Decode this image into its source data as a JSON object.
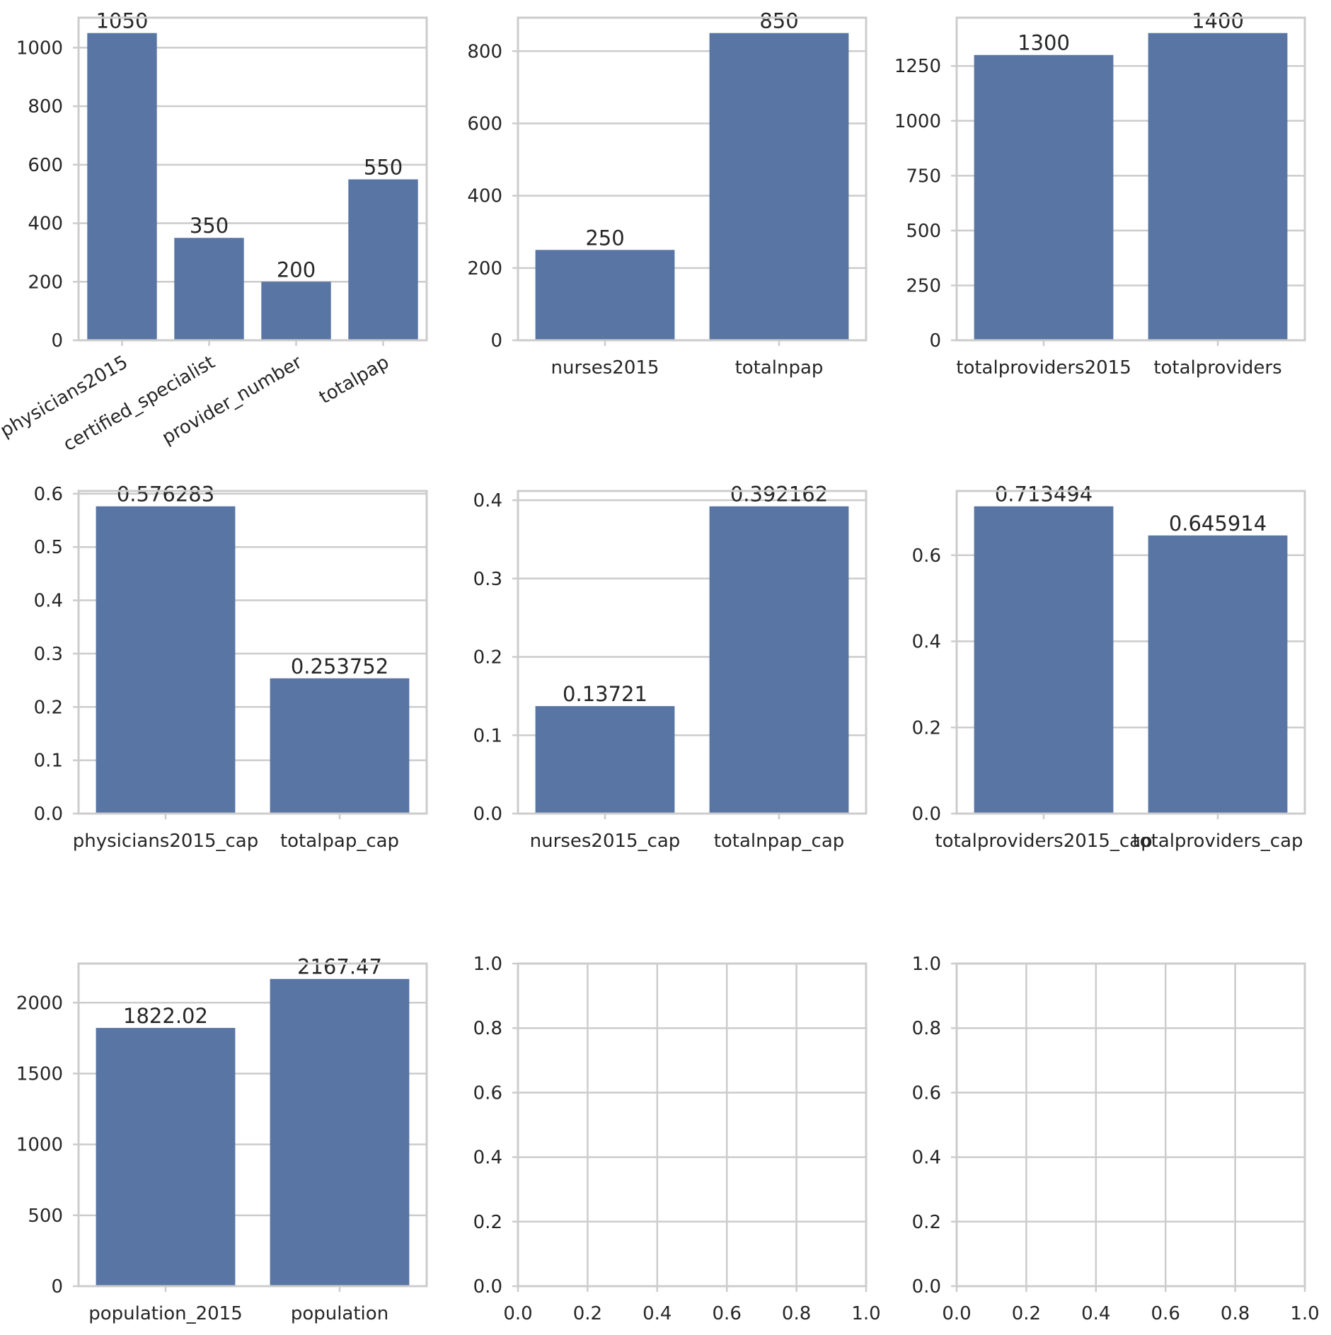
{
  "colors": {
    "bar": "#5975a4",
    "grid": "#cccccc",
    "text": "#262626",
    "background": "#ffffff"
  },
  "chart_data": [
    {
      "type": "bar",
      "categories": [
        "physicians2015",
        "certified_specialist",
        "provider_number",
        "totalpap"
      ],
      "values": [
        1050,
        350,
        200,
        550
      ],
      "value_labels": [
        "1050",
        "350",
        "200",
        "550"
      ],
      "yticks": [
        0,
        200,
        400,
        600,
        800,
        1000
      ],
      "ytick_labels": [
        "0",
        "200",
        "400",
        "600",
        "800",
        "1000"
      ],
      "ylim": [
        0,
        1102.5
      ],
      "xlabel_rotation": 30,
      "grid": true
    },
    {
      "type": "bar",
      "categories": [
        "nurses2015",
        "totalnpap"
      ],
      "values": [
        250,
        850
      ],
      "value_labels": [
        "250",
        "850"
      ],
      "yticks": [
        0,
        200,
        400,
        600,
        800
      ],
      "ytick_labels": [
        "0",
        "200",
        "400",
        "600",
        "800"
      ],
      "ylim": [
        0,
        892.5
      ],
      "grid": true
    },
    {
      "type": "bar",
      "categories": [
        "totalproviders2015",
        "totalproviders"
      ],
      "values": [
        1300,
        1400
      ],
      "value_labels": [
        "1300",
        "1400"
      ],
      "yticks": [
        0,
        250,
        500,
        750,
        1000,
        1250
      ],
      "ytick_labels": [
        "0",
        "250",
        "500",
        "750",
        "1000",
        "1250"
      ],
      "ylim": [
        0,
        1470
      ],
      "grid": true
    },
    {
      "type": "bar",
      "categories": [
        "physicians2015_cap",
        "totalpap_cap"
      ],
      "values": [
        0.576283,
        0.253752
      ],
      "value_labels": [
        "0.576283",
        "0.253752"
      ],
      "yticks": [
        0,
        0.1,
        0.2,
        0.3,
        0.4,
        0.5,
        0.6
      ],
      "ytick_labels": [
        "0.0",
        "0.1",
        "0.2",
        "0.3",
        "0.4",
        "0.5",
        "0.6"
      ],
      "ylim": [
        0,
        0.6051
      ],
      "grid": true
    },
    {
      "type": "bar",
      "categories": [
        "nurses2015_cap",
        "totalnpap_cap"
      ],
      "values": [
        0.13721,
        0.392162
      ],
      "value_labels": [
        "0.13721",
        "0.392162"
      ],
      "yticks": [
        0,
        0.1,
        0.2,
        0.3,
        0.4
      ],
      "ytick_labels": [
        "0.0",
        "0.1",
        "0.2",
        "0.3",
        "0.4"
      ],
      "ylim": [
        0,
        0.41177
      ],
      "grid": true
    },
    {
      "type": "bar",
      "categories": [
        "totalproviders2015_cap",
        "totalproviders_cap"
      ],
      "values": [
        0.713494,
        0.645914
      ],
      "value_labels": [
        "0.713494",
        "0.645914"
      ],
      "yticks": [
        0,
        0.2,
        0.4,
        0.6
      ],
      "ytick_labels": [
        "0.0",
        "0.2",
        "0.4",
        "0.6"
      ],
      "ylim": [
        0,
        0.74917
      ],
      "grid": true
    },
    {
      "type": "bar",
      "categories": [
        "population_2015",
        "population"
      ],
      "values": [
        1822.02,
        2167.47
      ],
      "value_labels": [
        "1822.02",
        "2167.47"
      ],
      "yticks": [
        0,
        500,
        1000,
        1500,
        2000
      ],
      "ytick_labels": [
        "0",
        "500",
        "1000",
        "1500",
        "2000"
      ],
      "ylim": [
        0,
        2275.8
      ],
      "grid": true
    },
    {
      "type": "empty",
      "xticks": [
        0,
        0.2,
        0.4,
        0.6,
        0.8,
        1.0
      ],
      "xtick_labels": [
        "0.0",
        "0.2",
        "0.4",
        "0.6",
        "0.8",
        "1.0"
      ],
      "yticks": [
        0,
        0.2,
        0.4,
        0.6,
        0.8,
        1.0
      ],
      "ytick_labels": [
        "0.0",
        "0.2",
        "0.4",
        "0.6",
        "0.8",
        "1.0"
      ],
      "xlim": [
        0,
        1
      ],
      "ylim": [
        0,
        1
      ],
      "grid": true
    },
    {
      "type": "empty",
      "xticks": [
        0,
        0.2,
        0.4,
        0.6,
        0.8,
        1.0
      ],
      "xtick_labels": [
        "0.0",
        "0.2",
        "0.4",
        "0.6",
        "0.8",
        "1.0"
      ],
      "yticks": [
        0,
        0.2,
        0.4,
        0.6,
        0.8,
        1.0
      ],
      "ytick_labels": [
        "0.0",
        "0.2",
        "0.4",
        "0.6",
        "0.8",
        "1.0"
      ],
      "xlim": [
        0,
        1
      ],
      "ylim": [
        0,
        1
      ],
      "grid": true
    }
  ]
}
